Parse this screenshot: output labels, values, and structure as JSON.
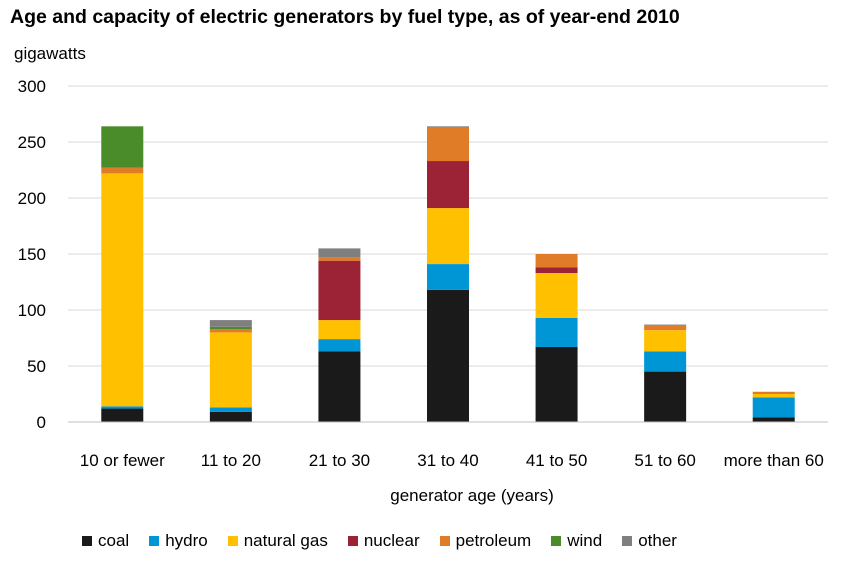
{
  "chart_data": {
    "type": "bar",
    "stacked": true,
    "title": "Age and capacity of electric generators by fuel type, as of year-end 2010",
    "ylabel": "gigawatts",
    "xlabel": "generator age (years)",
    "ylim": [
      0,
      300
    ],
    "yticks": [
      0,
      50,
      100,
      150,
      200,
      250,
      300
    ],
    "grid": "horizontal",
    "legend_position": "bottom",
    "categories": [
      "10 or fewer",
      "11 to 20",
      "21 to 30",
      "31 to 40",
      "41 to 50",
      "51 to 60",
      "more than 60"
    ],
    "series": [
      {
        "name": "coal",
        "color": "#1a1a1a",
        "values": [
          12,
          9,
          63,
          118,
          67,
          45,
          4
        ]
      },
      {
        "name": "hydro",
        "color": "#0096d6",
        "values": [
          2,
          4,
          11,
          23,
          26,
          18,
          18
        ]
      },
      {
        "name": "natural gas",
        "color": "#ffc000",
        "values": [
          208,
          67,
          17,
          50,
          40,
          19,
          3
        ]
      },
      {
        "name": "nuclear",
        "color": "#9b2335",
        "values": [
          0,
          0,
          53,
          42,
          5,
          0,
          0
        ]
      },
      {
        "name": "petroleum",
        "color": "#e07b28",
        "values": [
          5,
          3,
          3,
          30,
          12,
          4,
          2
        ]
      },
      {
        "name": "wind",
        "color": "#4a8c2a",
        "values": [
          37,
          2,
          0,
          0,
          0,
          0,
          0
        ]
      },
      {
        "name": "other",
        "color": "#7f7f7f",
        "values": [
          0,
          6,
          8,
          1,
          0,
          1,
          0
        ]
      }
    ]
  }
}
